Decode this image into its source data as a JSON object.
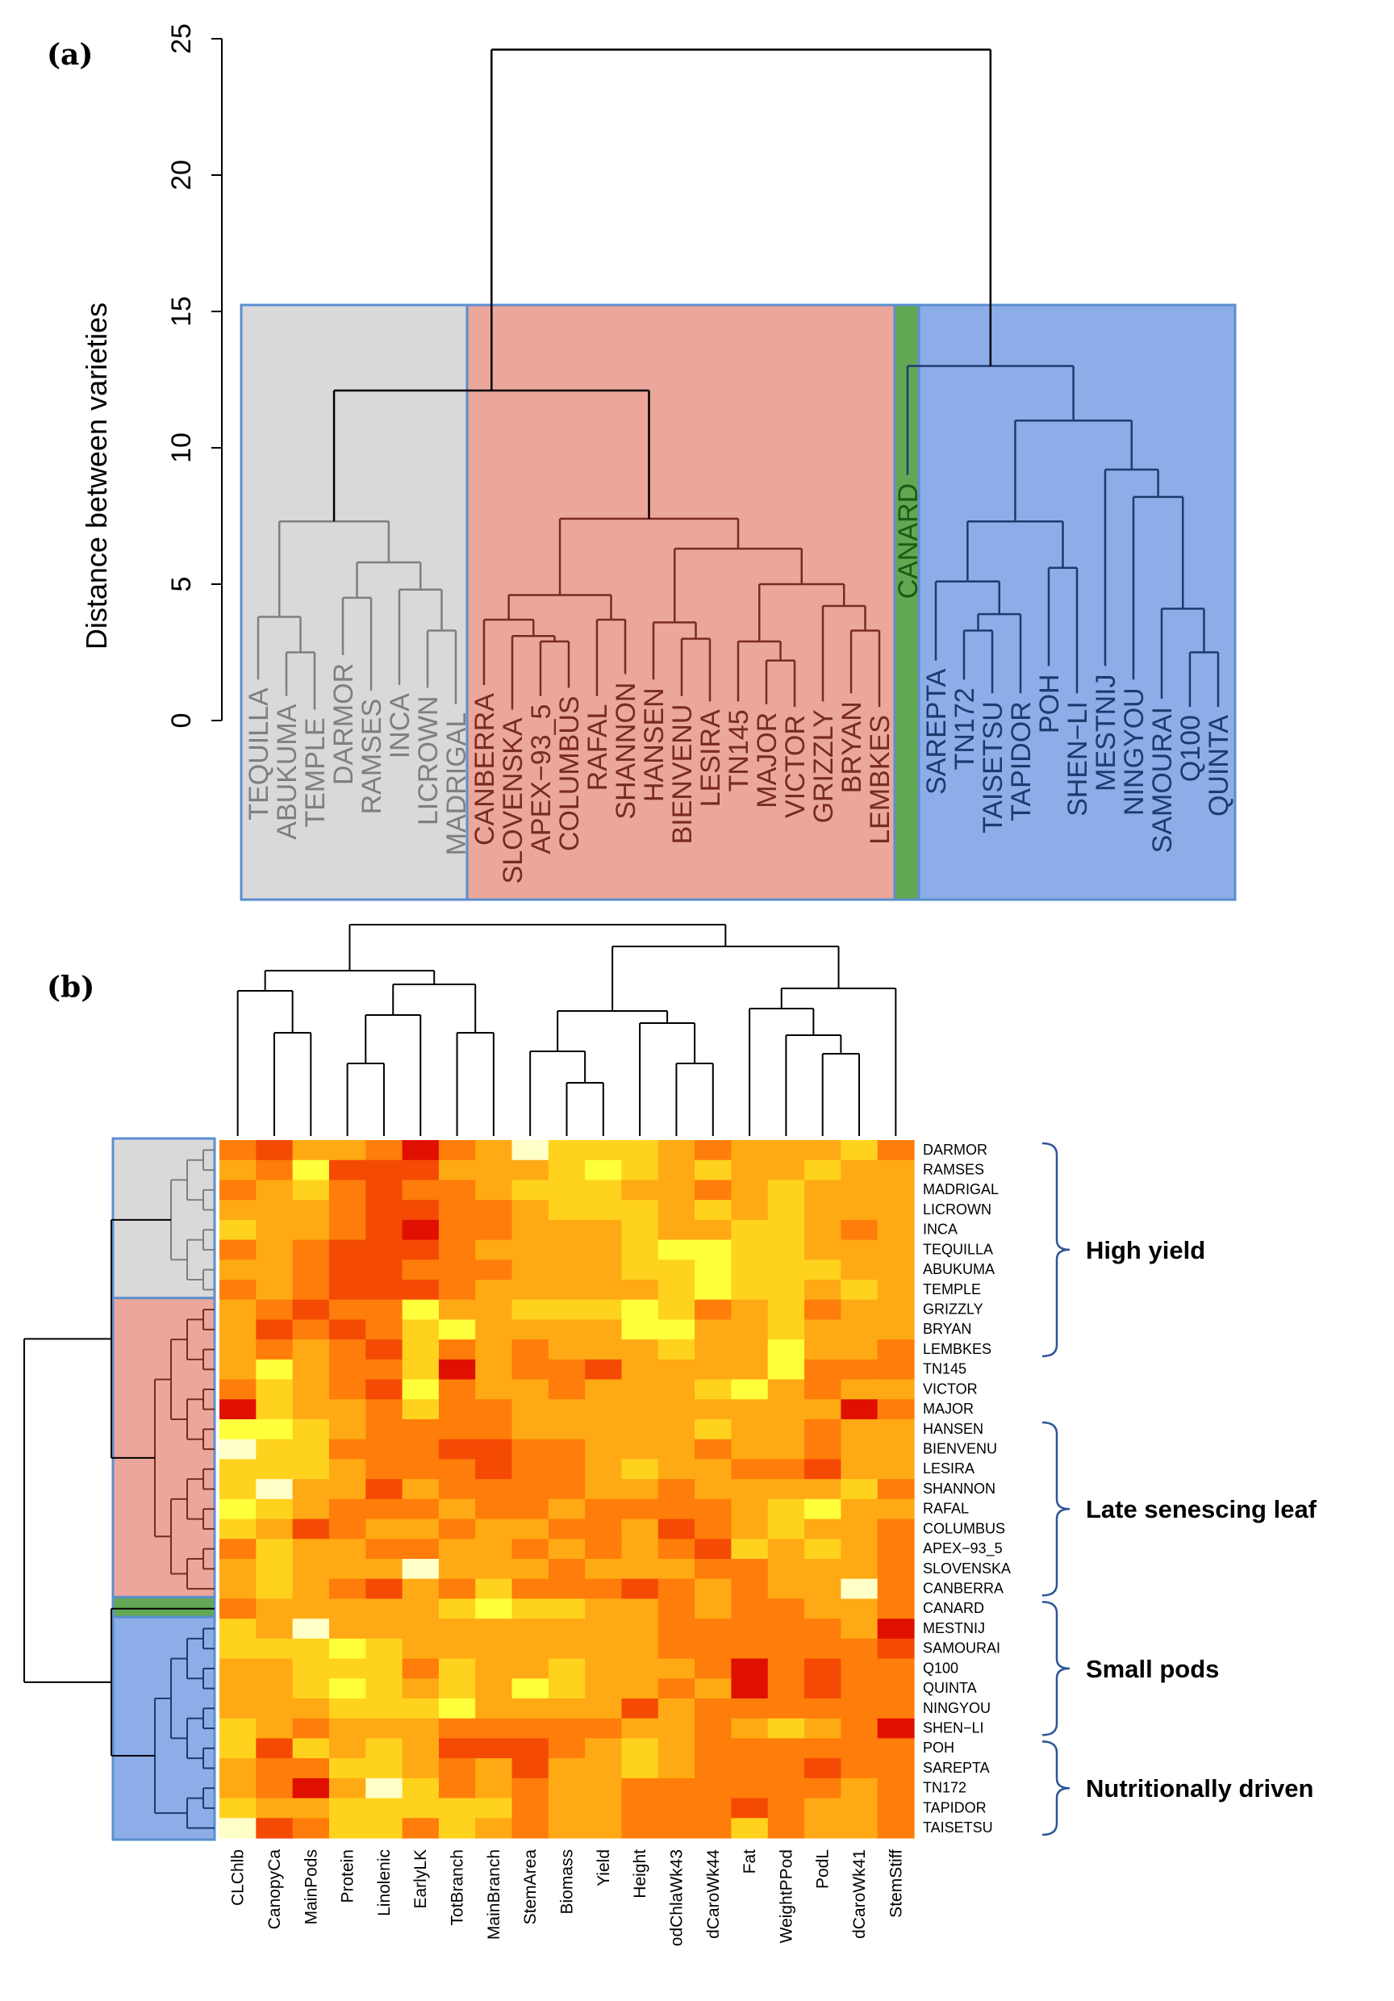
{
  "panel_a_label": "(a)",
  "panel_b_label": "(b)",
  "chart_data": [
    {
      "type": "dendrogram",
      "title": "",
      "xlabel": "",
      "ylabel": "Distance between varieties",
      "ylim": [
        0,
        25
      ],
      "yticks": [
        "0",
        "5",
        "10",
        "15",
        "20",
        "25"
      ],
      "leaves": [
        "TEQUILLA",
        "ABUKUMA",
        "TEMPLE",
        "DARMOR",
        "RAMSES",
        "INCA",
        "LICROWN",
        "MADRIGAL",
        "CANBERRA",
        "SLOVENSKA",
        "APEX−93_5",
        "COLUMBUS",
        "RAFAL",
        "SHANNON",
        "HANSEN",
        "BIENVENU",
        "LESIRA",
        "TN145",
        "MAJOR",
        "VICTOR",
        "GRIZZLY",
        "BRYAN",
        "LEMBKES",
        "CANARD",
        "SAREPTA",
        "TN172",
        "TAISETSU",
        "TAPIDOR",
        "POH",
        "SHEN−LI",
        "MESTNIJ",
        "NINGYOU",
        "SAMOURAI",
        "Q100",
        "QUINTA"
      ],
      "leaf_heights": [
        1.5,
        0.9,
        0.4,
        2.4,
        1.1,
        1.3,
        1.2,
        0.6,
        1.3,
        0.4,
        0.9,
        1.2,
        0.9,
        1.7,
        1.5,
        0.9,
        0.7,
        0.7,
        0.6,
        0.5,
        0.7,
        1.0,
        0.5,
        9.0,
        2.2,
        1.5,
        1.0,
        1.0,
        2.0,
        1.0,
        2.0,
        1.5,
        0.8,
        0.5,
        0.5
      ],
      "clusters": [
        {
          "name": "High yield",
          "color": "#d9d9d9",
          "line": "#7f7f7f",
          "leaves": [
            "TEQUILLA",
            "ABUKUMA",
            "TEMPLE",
            "DARMOR",
            "RAMSES",
            "INCA",
            "LICROWN",
            "MADRIGAL"
          ]
        },
        {
          "name": "Late senescing leaf",
          "color": "#eba79c",
          "line": "#7a2b20",
          "leaves": [
            "CANBERRA",
            "SLOVENSKA",
            "APEX−93_5",
            "COLUMBUS",
            "RAFAL",
            "SHANNON",
            "HANSEN",
            "BIENVENU",
            "LESIRA",
            "TN145",
            "MAJOR",
            "VICTOR",
            "GRIZZLY",
            "BRYAN",
            "LEMBKES"
          ]
        },
        {
          "name": "CANARD",
          "color": "#62a853",
          "line": "#1f5a14",
          "leaves": [
            "CANARD"
          ]
        },
        {
          "name": "Small pods / Nutritionally driven",
          "color": "#8cade8",
          "line": "#1e3a6e",
          "leaves": [
            "SAREPTA",
            "TN172",
            "TAISETSU",
            "TAPIDOR",
            "POH",
            "SHEN−LI",
            "MESTNIJ",
            "NINGYOU",
            "SAMOURAI",
            "Q100",
            "QUINTA"
          ]
        }
      ],
      "merges": [
        {
          "a": "TEMPLE",
          "b": "ABUKUMA",
          "h": 2.5
        },
        {
          "a": "TEQUILLA",
          "b": "ABUKUMA+TEMPLE",
          "h": 3.8
        },
        {
          "a": "DARMOR",
          "b": "RAMSES",
          "h": 4.5
        },
        {
          "a": "LICROWN",
          "b": "MADRIGAL",
          "h": 3.3
        },
        {
          "a": "INCA",
          "b": "LICROWN+MADRIGAL",
          "h": 4.8
        },
        {
          "a": "DARMOR+RAMSES",
          "b": "INCA+LICROWN+MADRIGAL",
          "h": 5.8
        },
        {
          "a": "grey-left",
          "b": "grey-right",
          "h": 7.3
        },
        {
          "a": "APEX−93_5",
          "b": "COLUMBUS",
          "h": 2.9
        },
        {
          "a": "SLOVENSKA",
          "b": "APEX−93_5+COLUMBUS",
          "h": 3.1
        },
        {
          "a": "CANBERRA",
          "b": "SLOVENSKA+…",
          "h": 3.7
        },
        {
          "a": "RAFAL",
          "b": "SHANNON",
          "h": 3.7
        },
        {
          "a": "red-a",
          "b": "RAFAL+SHANNON",
          "h": 4.6
        },
        {
          "a": "BIENVENU",
          "b": "LESIRA",
          "h": 3.0
        },
        {
          "a": "HANSEN",
          "b": "BIENVENU+LESIRA",
          "h": 3.6
        },
        {
          "a": "MAJOR",
          "b": "VICTOR",
          "h": 2.2
        },
        {
          "a": "TN145",
          "b": "MAJOR+VICTOR",
          "h": 2.9
        },
        {
          "a": "BRYAN",
          "b": "LEMBKES",
          "h": 3.3
        },
        {
          "a": "GRIZZLY",
          "b": "BRYAN+LEMBKES",
          "h": 4.2
        },
        {
          "a": "red-c1",
          "b": "red-c2",
          "h": 5.0
        },
        {
          "a": "red-b",
          "b": "red-c",
          "h": 6.3
        },
        {
          "a": "red-a",
          "b": "red-bc",
          "h": 7.4
        },
        {
          "a": "grey",
          "b": "red",
          "h": 12.1
        },
        {
          "a": "TN172",
          "b": "TAISETSU",
          "h": 3.3
        },
        {
          "a": "TAPIDOR",
          "b": "TN172+TAISETSU",
          "h": 3.9
        },
        {
          "a": "SAREPTA",
          "b": "TAPIDOR+…",
          "h": 5.1
        },
        {
          "a": "POH",
          "b": "SHEN−LI",
          "h": 5.6
        },
        {
          "a": "blue-a",
          "b": "POH+SHEN−LI",
          "h": 7.3
        },
        {
          "a": "Q100",
          "b": "QUINTA",
          "h": 2.5
        },
        {
          "a": "SAMOURAI",
          "b": "Q100+QUINTA",
          "h": 4.1
        },
        {
          "a": "NINGYOU",
          "b": "SAMOURAI+…",
          "h": 8.2
        },
        {
          "a": "MESTNIJ",
          "b": "NINGYOU+…",
          "h": 9.2
        },
        {
          "a": "blue-a",
          "b": "blue-b",
          "h": 11.0
        },
        {
          "a": "CANARD",
          "b": "blue",
          "h": 13.0
        },
        {
          "a": "grey+red",
          "b": "CANARD+blue",
          "h": 24.6
        }
      ]
    },
    {
      "type": "heatmap",
      "title": "",
      "columns": [
        "CLChlb",
        "CanopyCa",
        "MainPods",
        "Protein",
        "Linolenic",
        "EarlyLK",
        "TotBranch",
        "MainBranch",
        "StemArea",
        "Biomass",
        "Yield",
        "Height",
        "odChlaWk43",
        "dCaroWk44",
        "Fat",
        "WeightPPod",
        "PodL",
        "dCaroWk41",
        "StemStiff"
      ],
      "rows": [
        "DARMOR",
        "RAMSES",
        "MADRIGAL",
        "LICROWN",
        "INCA",
        "TEQUILLA",
        "ABUKUMA",
        "TEMPLE",
        "GRIZZLY",
        "BRYAN",
        "LEMBKES",
        "TN145",
        "VICTOR",
        "MAJOR",
        "HANSEN",
        "BIENVENU",
        "LESIRA",
        "SHANNON",
        "RAFAL",
        "COLUMBUS",
        "APEX−93_5",
        "SLOVENSKA",
        "CANBERRA",
        "CANARD",
        "MESTNIJ",
        "SAMOURAI",
        "Q100",
        "QUINTA",
        "NINGYOU",
        "SHEN−LI",
        "POH",
        "SAREPTA",
        "TN172",
        "TAPIDOR",
        "TAISETSU"
      ],
      "color_scale": [
        "#ffffc8",
        "#ffff3c",
        "#ffd21e",
        "#ffaa14",
        "#ff7d0a",
        "#f54a04",
        "#e01000"
      ],
      "row_groups": [
        {
          "color": "#d9d9d9",
          "rows": [
            "DARMOR",
            "RAMSES",
            "MADRIGAL",
            "LICROWN",
            "INCA",
            "TEQUILLA",
            "ABUKUMA",
            "TEMPLE"
          ]
        },
        {
          "color": "#eba79c",
          "rows": [
            "GRIZZLY",
            "BRYAN",
            "LEMBKES",
            "TN145",
            "VICTOR",
            "MAJOR",
            "HANSEN",
            "BIENVENU",
            "LESIRA",
            "SHANNON",
            "RAFAL",
            "COLUMBUS",
            "APEX−93_5",
            "SLOVENSKA",
            "CANBERRA"
          ]
        },
        {
          "color": "#62a853",
          "rows": [
            "CANARD"
          ]
        },
        {
          "color": "#8cade8",
          "rows": [
            "MESTNIJ",
            "SAMOURAI",
            "Q100",
            "QUINTA",
            "NINGYOU",
            "SHEN−LI",
            "POH",
            "SAREPTA",
            "TN172",
            "TAPIDOR",
            "TAISETSU"
          ]
        }
      ],
      "annotations": [
        {
          "label": "High yield",
          "from": "DARMOR",
          "to": "LEMBKES"
        },
        {
          "label": "Late senescing leaf",
          "from": "HANSEN",
          "to": "CANBERRA"
        },
        {
          "label": "Small pods",
          "from": "CANARD",
          "to": "SHEN−LI"
        },
        {
          "label": "Nutritionally driven",
          "from": "POH",
          "to": "TAISETSU"
        }
      ],
      "values": [
        [
          4,
          5,
          3,
          3,
          4,
          6,
          4,
          3,
          0,
          2,
          2,
          2,
          3,
          4,
          3,
          3,
          3,
          2,
          4
        ],
        [
          3,
          4,
          1,
          5,
          5,
          5,
          3,
          3,
          3,
          2,
          1,
          2,
          3,
          2,
          3,
          3,
          2,
          3,
          3
        ],
        [
          4,
          3,
          2,
          4,
          5,
          4,
          4,
          3,
          2,
          2,
          2,
          3,
          3,
          4,
          3,
          2,
          3,
          3,
          3
        ],
        [
          3,
          3,
          3,
          4,
          5,
          5,
          4,
          4,
          3,
          2,
          2,
          2,
          3,
          2,
          3,
          2,
          3,
          3,
          3
        ],
        [
          2,
          3,
          3,
          4,
          5,
          6,
          4,
          4,
          3,
          3,
          3,
          2,
          3,
          3,
          2,
          2,
          3,
          4,
          3
        ],
        [
          4,
          3,
          4,
          5,
          5,
          5,
          4,
          3,
          3,
          3,
          3,
          2,
          1,
          1,
          2,
          2,
          3,
          3,
          3
        ],
        [
          3,
          3,
          4,
          5,
          5,
          4,
          4,
          4,
          3,
          3,
          3,
          2,
          2,
          1,
          2,
          2,
          2,
          3,
          3
        ],
        [
          4,
          3,
          4,
          5,
          5,
          5,
          4,
          3,
          3,
          3,
          3,
          3,
          2,
          1,
          2,
          2,
          3,
          2,
          3
        ],
        [
          3,
          4,
          5,
          4,
          4,
          1,
          3,
          3,
          2,
          2,
          2,
          1,
          2,
          4,
          3,
          2,
          4,
          3,
          3
        ],
        [
          3,
          5,
          4,
          5,
          4,
          2,
          1,
          3,
          3,
          3,
          3,
          1,
          1,
          3,
          3,
          2,
          3,
          3,
          3
        ],
        [
          3,
          4,
          3,
          4,
          5,
          2,
          4,
          3,
          4,
          3,
          3,
          3,
          2,
          3,
          3,
          1,
          3,
          3,
          4
        ],
        [
          3,
          1,
          3,
          4,
          4,
          2,
          6,
          3,
          4,
          4,
          5,
          3,
          3,
          3,
          3,
          1,
          4,
          4,
          4
        ],
        [
          4,
          2,
          3,
          4,
          5,
          1,
          4,
          3,
          3,
          4,
          3,
          3,
          3,
          2,
          1,
          3,
          4,
          3,
          3
        ],
        [
          6,
          2,
          3,
          3,
          4,
          2,
          4,
          4,
          3,
          3,
          3,
          3,
          3,
          3,
          3,
          3,
          3,
          6,
          4
        ],
        [
          1,
          1,
          2,
          3,
          4,
          4,
          4,
          4,
          3,
          3,
          3,
          3,
          3,
          2,
          3,
          3,
          4,
          3,
          3
        ],
        [
          0,
          2,
          2,
          4,
          4,
          4,
          5,
          5,
          4,
          4,
          3,
          3,
          3,
          4,
          3,
          3,
          4,
          3,
          3
        ],
        [
          2,
          2,
          2,
          3,
          4,
          4,
          4,
          5,
          4,
          4,
          3,
          2,
          3,
          3,
          4,
          4,
          5,
          3,
          3
        ],
        [
          2,
          0,
          3,
          3,
          5,
          3,
          4,
          4,
          4,
          4,
          3,
          3,
          4,
          3,
          3,
          3,
          3,
          2,
          4
        ],
        [
          1,
          2,
          3,
          4,
          4,
          4,
          3,
          4,
          4,
          3,
          4,
          4,
          4,
          4,
          3,
          2,
          1,
          3,
          3
        ],
        [
          2,
          3,
          5,
          4,
          3,
          3,
          4,
          3,
          3,
          4,
          4,
          3,
          5,
          4,
          3,
          2,
          3,
          3,
          4
        ],
        [
          4,
          2,
          3,
          3,
          4,
          4,
          3,
          3,
          4,
          3,
          4,
          3,
          4,
          5,
          2,
          3,
          2,
          3,
          4
        ],
        [
          3,
          2,
          3,
          3,
          3,
          0,
          3,
          3,
          3,
          4,
          3,
          3,
          3,
          4,
          4,
          3,
          3,
          3,
          4
        ],
        [
          3,
          2,
          3,
          4,
          5,
          3,
          4,
          2,
          4,
          4,
          4,
          5,
          4,
          3,
          4,
          3,
          3,
          0,
          4
        ],
        [
          4,
          3,
          3,
          3,
          3,
          3,
          2,
          1,
          2,
          2,
          3,
          3,
          4,
          3,
          4,
          4,
          3,
          3,
          4
        ],
        [
          2,
          3,
          0,
          3,
          3,
          3,
          3,
          3,
          3,
          3,
          3,
          3,
          4,
          4,
          4,
          4,
          4,
          3,
          6
        ],
        [
          2,
          2,
          2,
          1,
          2,
          3,
          3,
          3,
          3,
          3,
          3,
          3,
          4,
          4,
          4,
          4,
          4,
          4,
          5
        ],
        [
          3,
          3,
          2,
          2,
          2,
          4,
          2,
          3,
          3,
          2,
          3,
          3,
          3,
          4,
          6,
          4,
          5,
          4,
          4
        ],
        [
          3,
          3,
          2,
          1,
          2,
          3,
          2,
          3,
          1,
          2,
          3,
          3,
          4,
          3,
          6,
          4,
          5,
          4,
          4
        ],
        [
          3,
          3,
          3,
          2,
          2,
          2,
          1,
          3,
          3,
          3,
          3,
          5,
          3,
          4,
          4,
          4,
          4,
          4,
          4
        ],
        [
          2,
          3,
          4,
          3,
          3,
          3,
          4,
          4,
          4,
          4,
          4,
          3,
          3,
          4,
          3,
          2,
          3,
          4,
          6
        ],
        [
          2,
          5,
          2,
          3,
          2,
          3,
          5,
          5,
          5,
          4,
          3,
          2,
          3,
          4,
          4,
          4,
          4,
          4,
          4
        ],
        [
          3,
          4,
          4,
          2,
          2,
          3,
          4,
          3,
          5,
          3,
          3,
          2,
          3,
          4,
          4,
          4,
          5,
          4,
          4
        ],
        [
          3,
          4,
          6,
          3,
          0,
          2,
          4,
          3,
          4,
          3,
          3,
          4,
          4,
          4,
          4,
          4,
          4,
          3,
          4
        ],
        [
          2,
          3,
          3,
          2,
          2,
          2,
          2,
          2,
          4,
          3,
          3,
          4,
          4,
          4,
          5,
          4,
          3,
          3,
          4
        ],
        [
          0,
          5,
          4,
          2,
          2,
          4,
          2,
          3,
          4,
          3,
          3,
          4,
          4,
          4,
          2,
          4,
          3,
          3,
          4
        ]
      ]
    }
  ]
}
